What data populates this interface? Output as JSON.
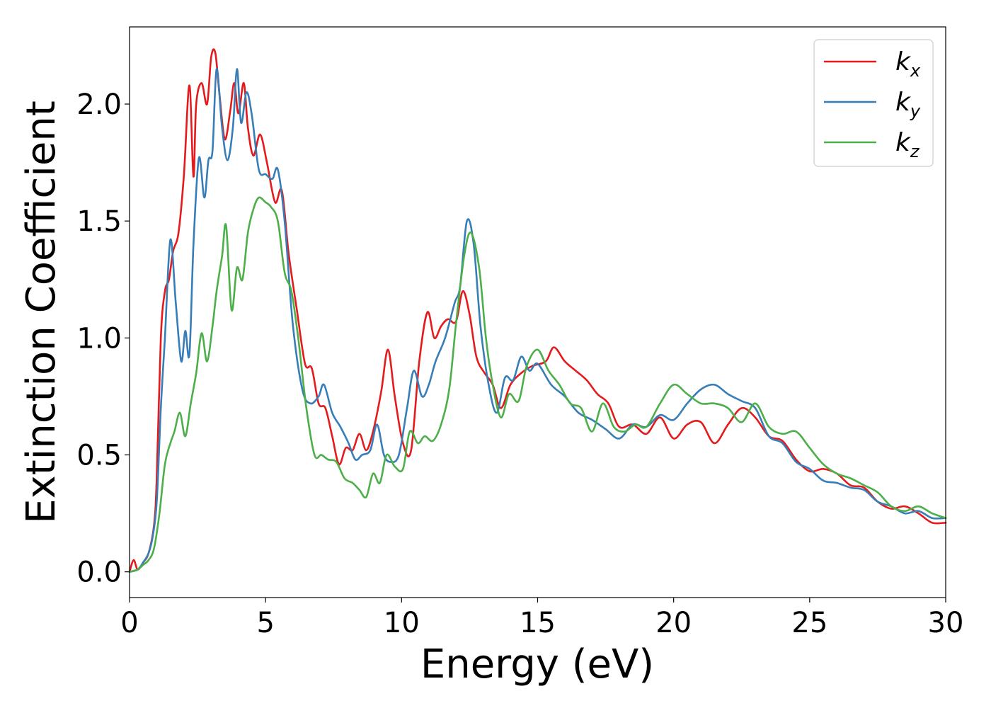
{
  "chart_data": {
    "type": "line",
    "xlabel": "Energy (eV)",
    "ylabel": "Extinction Coefficient",
    "xlim": [
      0,
      30
    ],
    "ylim": [
      -0.11,
      2.33
    ],
    "xticks": [
      0,
      5,
      10,
      15,
      20,
      25,
      30
    ],
    "yticks": [
      0.0,
      0.5,
      1.0,
      1.5,
      2.0
    ],
    "grid": false,
    "legend_position": "top-right",
    "series": [
      {
        "name": "k_x",
        "label_main": "k",
        "label_sub": "x",
        "color": "#e41a1c",
        "x": [
          0,
          0.15,
          0.3,
          0.5,
          0.7,
          0.9,
          1.0,
          1.15,
          1.3,
          1.45,
          1.6,
          1.8,
          2.0,
          2.2,
          2.35,
          2.45,
          2.65,
          2.85,
          3.0,
          3.15,
          3.3,
          3.5,
          3.7,
          3.85,
          4.0,
          4.2,
          4.35,
          4.55,
          4.8,
          5.05,
          5.35,
          5.6,
          5.85,
          6.15,
          6.45,
          6.7,
          6.95,
          7.2,
          7.45,
          7.7,
          7.95,
          8.2,
          8.45,
          8.7,
          8.95,
          9.25,
          9.5,
          9.75,
          10.05,
          10.35,
          10.65,
          10.95,
          11.2,
          11.45,
          11.7,
          12.0,
          12.25,
          12.5,
          12.75,
          13.05,
          13.35,
          13.65,
          14.0,
          14.4,
          14.8,
          15.3,
          15.6,
          16.0,
          16.4,
          16.8,
          17.2,
          17.6,
          18.0,
          18.5,
          19.0,
          19.5,
          20.0,
          20.5,
          21.0,
          21.5,
          22.0,
          22.5,
          23.0,
          23.5,
          24.0,
          24.5,
          25.0,
          25.5,
          26.0,
          26.5,
          27.0,
          27.5,
          28.0,
          28.5,
          29.0,
          29.5,
          30.0
        ],
        "y": [
          0.0,
          0.05,
          0.01,
          0.04,
          0.08,
          0.2,
          0.4,
          1.0,
          1.2,
          1.25,
          1.37,
          1.45,
          1.7,
          2.08,
          1.69,
          2.0,
          2.09,
          2.0,
          2.2,
          2.22,
          2.05,
          1.85,
          1.97,
          2.09,
          1.96,
          2.09,
          1.9,
          1.78,
          1.87,
          1.75,
          1.58,
          1.63,
          1.36,
          1.12,
          0.89,
          0.87,
          0.72,
          0.7,
          0.58,
          0.46,
          0.53,
          0.52,
          0.59,
          0.52,
          0.6,
          0.77,
          0.95,
          0.75,
          0.55,
          0.52,
          0.9,
          1.11,
          1.0,
          1.05,
          1.08,
          1.07,
          1.2,
          1.1,
          0.92,
          0.85,
          0.8,
          0.7,
          0.8,
          0.85,
          0.88,
          0.9,
          0.96,
          0.9,
          0.86,
          0.82,
          0.76,
          0.72,
          0.62,
          0.63,
          0.59,
          0.66,
          0.57,
          0.63,
          0.64,
          0.55,
          0.63,
          0.7,
          0.66,
          0.58,
          0.56,
          0.48,
          0.43,
          0.44,
          0.42,
          0.37,
          0.36,
          0.3,
          0.27,
          0.28,
          0.25,
          0.21,
          0.21
        ]
      },
      {
        "name": "k_y",
        "label_main": "k",
        "label_sub": "y",
        "color": "#377eb8",
        "x": [
          0,
          0.3,
          0.5,
          0.7,
          0.85,
          1.0,
          1.15,
          1.3,
          1.5,
          1.7,
          1.9,
          2.05,
          2.2,
          2.35,
          2.55,
          2.75,
          2.9,
          3.05,
          3.2,
          3.4,
          3.6,
          3.8,
          3.95,
          4.1,
          4.3,
          4.5,
          4.75,
          5.0,
          5.25,
          5.45,
          5.7,
          6.0,
          6.35,
          6.65,
          6.95,
          7.15,
          7.45,
          7.75,
          8.05,
          8.3,
          8.55,
          8.85,
          9.1,
          9.35,
          9.6,
          9.9,
          10.2,
          10.45,
          10.75,
          11.0,
          11.25,
          11.6,
          11.95,
          12.15,
          12.4,
          12.65,
          12.9,
          13.2,
          13.5,
          13.8,
          14.1,
          14.4,
          14.7,
          15.0,
          15.5,
          16.0,
          16.5,
          17.0,
          17.5,
          18.0,
          18.5,
          19.0,
          19.5,
          20.0,
          20.5,
          21.0,
          21.5,
          22.0,
          22.5,
          23.0,
          23.5,
          24.0,
          24.5,
          25.0,
          25.5,
          26.0,
          26.5,
          27.0,
          27.5,
          28.0,
          28.5,
          29.0,
          29.5,
          30.0
        ],
        "y": [
          0.0,
          0.01,
          0.04,
          0.08,
          0.15,
          0.3,
          0.7,
          1.0,
          1.42,
          1.15,
          0.9,
          1.03,
          0.93,
          1.4,
          1.77,
          1.6,
          1.76,
          1.8,
          2.15,
          1.9,
          1.76,
          1.9,
          2.15,
          1.92,
          2.05,
          1.95,
          1.72,
          1.7,
          1.68,
          1.72,
          1.5,
          1.06,
          0.78,
          0.72,
          0.75,
          0.8,
          0.68,
          0.62,
          0.55,
          0.48,
          0.5,
          0.52,
          0.63,
          0.5,
          0.47,
          0.5,
          0.7,
          0.86,
          0.75,
          0.8,
          0.9,
          1.0,
          1.15,
          1.22,
          1.5,
          1.4,
          1.05,
          0.8,
          0.68,
          0.83,
          0.82,
          0.92,
          0.86,
          0.89,
          0.8,
          0.75,
          0.68,
          0.65,
          0.61,
          0.57,
          0.63,
          0.62,
          0.67,
          0.65,
          0.72,
          0.78,
          0.8,
          0.76,
          0.73,
          0.7,
          0.58,
          0.55,
          0.47,
          0.44,
          0.39,
          0.38,
          0.36,
          0.35,
          0.3,
          0.28,
          0.25,
          0.26,
          0.23,
          0.23
        ]
      },
      {
        "name": "k_z",
        "label_main": "k",
        "label_sub": "z",
        "color": "#4daf4a",
        "x": [
          0,
          0.3,
          0.5,
          0.7,
          0.9,
          1.1,
          1.3,
          1.5,
          1.65,
          1.85,
          2.05,
          2.25,
          2.45,
          2.65,
          2.85,
          3.05,
          3.2,
          3.4,
          3.55,
          3.75,
          3.95,
          4.15,
          4.35,
          4.55,
          4.75,
          5.0,
          5.2,
          5.45,
          5.7,
          5.95,
          6.2,
          6.5,
          6.8,
          7.05,
          7.3,
          7.6,
          7.9,
          8.2,
          8.45,
          8.7,
          8.95,
          9.2,
          9.45,
          9.75,
          10.05,
          10.3,
          10.6,
          10.85,
          11.15,
          11.45,
          11.75,
          12.0,
          12.3,
          12.55,
          12.85,
          13.1,
          13.35,
          13.65,
          13.95,
          14.3,
          14.6,
          15.0,
          15.4,
          15.8,
          16.2,
          16.6,
          17.0,
          17.4,
          17.8,
          18.2,
          18.6,
          19.0,
          19.5,
          20.0,
          20.5,
          21.0,
          21.5,
          22.0,
          22.5,
          23.0,
          23.5,
          24.0,
          24.5,
          25.0,
          25.5,
          26.0,
          26.5,
          27.0,
          27.5,
          28.0,
          28.5,
          29.0,
          29.5,
          30.0
        ],
        "y": [
          0.0,
          0.01,
          0.03,
          0.05,
          0.1,
          0.25,
          0.46,
          0.55,
          0.6,
          0.68,
          0.58,
          0.72,
          0.85,
          1.02,
          0.9,
          1.05,
          1.2,
          1.35,
          1.48,
          1.12,
          1.3,
          1.25,
          1.45,
          1.55,
          1.6,
          1.58,
          1.56,
          1.5,
          1.28,
          1.2,
          1.0,
          0.7,
          0.5,
          0.5,
          0.48,
          0.47,
          0.4,
          0.38,
          0.35,
          0.32,
          0.42,
          0.38,
          0.5,
          0.45,
          0.44,
          0.6,
          0.55,
          0.58,
          0.56,
          0.63,
          0.78,
          1.06,
          1.35,
          1.45,
          1.3,
          1.0,
          0.8,
          0.66,
          0.76,
          0.73,
          0.88,
          0.95,
          0.86,
          0.8,
          0.72,
          0.7,
          0.6,
          0.72,
          0.62,
          0.6,
          0.63,
          0.62,
          0.72,
          0.8,
          0.76,
          0.72,
          0.72,
          0.7,
          0.64,
          0.72,
          0.62,
          0.59,
          0.6,
          0.53,
          0.46,
          0.42,
          0.4,
          0.37,
          0.34,
          0.28,
          0.26,
          0.28,
          0.25,
          0.23
        ]
      }
    ]
  }
}
